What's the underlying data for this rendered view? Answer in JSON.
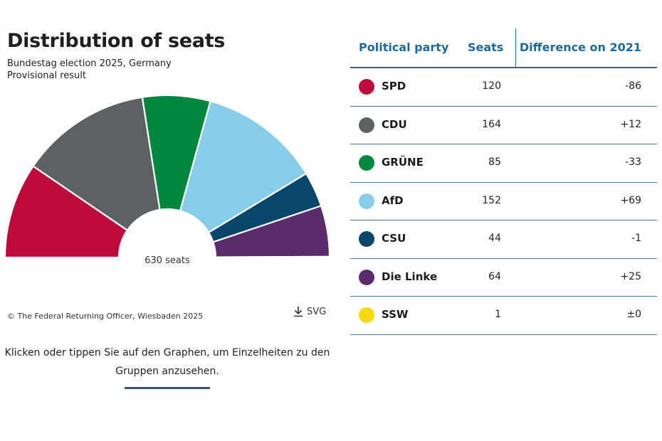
{
  "title": "Distribution of seats",
  "subtitle_line1": "Bundestag election 2025, Germany",
  "subtitle_line2": "Provisional result",
  "center_label": "630 seats",
  "copyright": "© The Federal Returning Officer, Wiesbaden 2025",
  "svg_button": "SVG",
  "hint": "Klicken oder tippen Sie auf den Graphen, um Einzelheiten zu den Gruppen anzusehen.",
  "table": {
    "headers": {
      "party": "Political party",
      "seats": "Seats",
      "diff": "Difference on 2021"
    }
  },
  "chart_data": {
    "type": "pie",
    "total_seats": 630,
    "parties": [
      {
        "name": "SPD",
        "seats": 120,
        "diff": "-86",
        "color": "#be0b3c"
      },
      {
        "name": "CDU",
        "seats": 164,
        "diff": "+12",
        "color": "#5d6163"
      },
      {
        "name": "GRÜNE",
        "seats": 85,
        "diff": "-33",
        "color": "#00873e"
      },
      {
        "name": "AfD",
        "seats": 152,
        "diff": "+69",
        "color": "#86cdeb"
      },
      {
        "name": "CSU",
        "seats": 44,
        "diff": "-1",
        "color": "#08466b"
      },
      {
        "name": "Die Linke",
        "seats": 64,
        "diff": "+25",
        "color": "#5c2b6e"
      },
      {
        "name": "SSW",
        "seats": 1,
        "diff": "±0",
        "color": "#f5d90a"
      }
    ]
  }
}
